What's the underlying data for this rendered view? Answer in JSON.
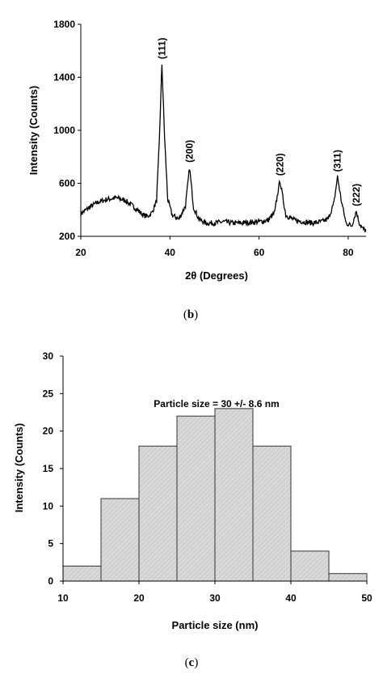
{
  "panels": {
    "b": {
      "label_open": "(",
      "label_letter": "b",
      "label_close": ")"
    },
    "c": {
      "label_open": "(",
      "label_letter": "c",
      "label_close": ")"
    }
  },
  "chart_data": [
    {
      "type": "line",
      "title": "",
      "xlabel": "2θ (Degrees)",
      "ylabel": "Intensity (Counts)",
      "xlim": [
        20,
        84
      ],
      "ylim": [
        200,
        1800
      ],
      "xticks": [
        20,
        40,
        60,
        80
      ],
      "yticks": [
        200,
        600,
        1000,
        1400,
        1800
      ],
      "grid": false,
      "line_color": "#000000",
      "peaks": [
        {
          "label": "(111)",
          "x": 38.2,
          "y": 1500
        },
        {
          "label": "(200)",
          "x": 44.4,
          "y": 720
        },
        {
          "label": "(220)",
          "x": 64.7,
          "y": 620
        },
        {
          "label": "(311)",
          "x": 77.6,
          "y": 650
        },
        {
          "label": "(222)",
          "x": 81.8,
          "y": 390
        }
      ],
      "series": [
        {
          "x": [
            20,
            22,
            24,
            26,
            28,
            30,
            32,
            34,
            35,
            36,
            37,
            37.6,
            38.2,
            38.8,
            39.5,
            40.5,
            42,
            43.5,
            44.4,
            45.3,
            46.5,
            48,
            50,
            52,
            54,
            56,
            58,
            60,
            62,
            63.5,
            64.3,
            64.7,
            65.2,
            66,
            68,
            70,
            72,
            74,
            75.5,
            76.8,
            77.6,
            78.4,
            79.5,
            80.8,
            81.8,
            82.5,
            83.2,
            84
          ],
          "y": [
            370,
            420,
            460,
            480,
            490,
            470,
            420,
            360,
            350,
            380,
            470,
            900,
            1500,
            950,
            480,
            360,
            330,
            430,
            720,
            420,
            330,
            300,
            300,
            310,
            300,
            300,
            305,
            310,
            320,
            380,
            550,
            620,
            520,
            360,
            320,
            310,
            300,
            310,
            330,
            450,
            650,
            480,
            300,
            280,
            390,
            300,
            260,
            240
          ]
        }
      ]
    },
    {
      "type": "bar",
      "title": "",
      "xlabel": "Particle size (nm)",
      "ylabel": "Intensity (Counts)",
      "annotation": "Particle size = 30 +/- 8.6 nm",
      "xlim": [
        10,
        50
      ],
      "ylim": [
        0,
        30
      ],
      "xticks": [
        10,
        20,
        30,
        40,
        50
      ],
      "yticks": [
        0,
        5,
        10,
        15,
        20,
        25,
        30
      ],
      "grid": false,
      "bar_color": "#d9d9d9",
      "bin_edges": [
        10,
        15,
        20,
        25,
        30,
        35,
        40,
        45,
        50
      ],
      "values": [
        2,
        11,
        18,
        22,
        23,
        18,
        4,
        1
      ]
    }
  ]
}
